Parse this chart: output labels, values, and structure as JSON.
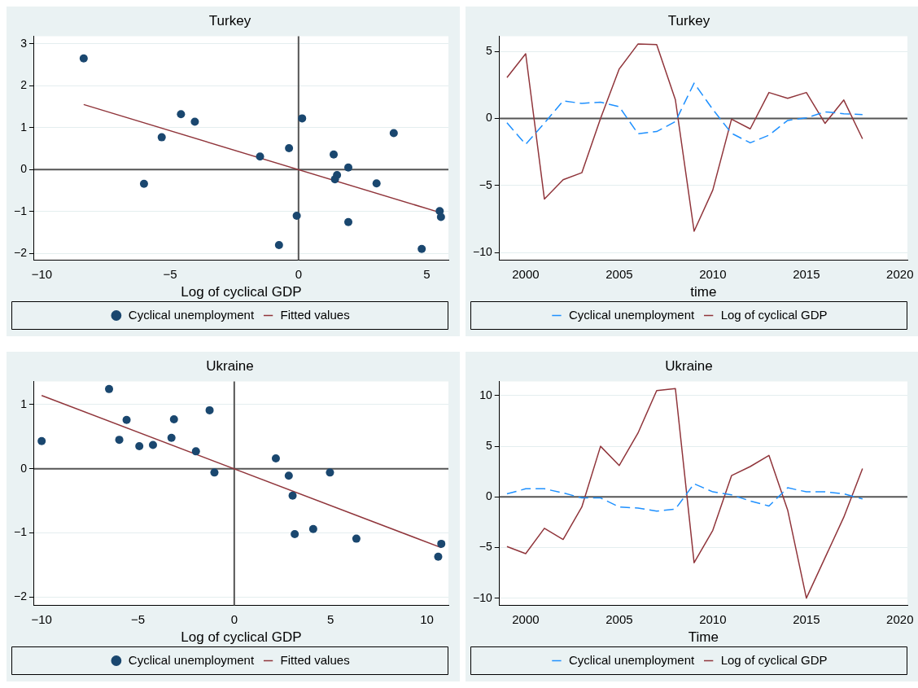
{
  "chart_data": [
    {
      "type": "scatter",
      "title": "Turkey",
      "xlabel": "Log of cyclical GDP",
      "xlim": [
        -10.3,
        5.84
      ],
      "xticks": [
        -10,
        -5,
        0,
        5
      ],
      "ylim": [
        -2.16,
        3.18
      ],
      "yticks": [
        -2,
        -1,
        0,
        1,
        2,
        3
      ],
      "grid": "y",
      "legend": "bottom",
      "ref_lines": [
        {
          "axis": "y",
          "value": 0,
          "color": "#555555"
        },
        {
          "axis": "x",
          "value": 0,
          "color": "#555555"
        }
      ],
      "series": [
        {
          "name": "Cyclical unemployment",
          "color": "#1a476f",
          "marker": "circle",
          "x": [
            -8.37,
            -6.02,
            -5.33,
            -4.58,
            -4.04,
            -1.5,
            -0.37,
            0.14,
            -0.07,
            -0.76,
            1.37,
            1.5,
            1.42,
            1.94,
            1.94,
            3.04,
            3.71,
            4.8,
            5.5,
            5.55
          ],
          "values": [
            2.65,
            -0.34,
            0.77,
            1.32,
            1.14,
            0.31,
            0.51,
            1.22,
            -1.1,
            -1.8,
            0.36,
            -0.13,
            -0.23,
            0.05,
            -1.25,
            -0.33,
            0.87,
            -1.89,
            -0.99,
            -1.13
          ]
        },
        {
          "name": "Fitted values",
          "type": "line",
          "color": "#90353b",
          "marker": "none",
          "x": [
            -8.37,
            5.55
          ],
          "values": [
            1.55,
            -1.03
          ]
        }
      ]
    },
    {
      "type": "line",
      "title": "Turkey",
      "xlabel": "time",
      "xlim": [
        1998.6,
        2020.4
      ],
      "xticks": [
        2000,
        2005,
        2010,
        2015,
        2020
      ],
      "ylim": [
        -10.56,
        6.14
      ],
      "yticks": [
        -10,
        -5,
        0,
        5
      ],
      "grid": "y",
      "legend": "bottom",
      "marker": "none",
      "ref_lines": [
        {
          "axis": "y",
          "value": 0,
          "color": "#555555"
        }
      ],
      "x": [
        1999,
        2000,
        2001,
        2002,
        2003,
        2004,
        2005,
        2006,
        2007,
        2008,
        2009,
        2010,
        2011,
        2012,
        2013,
        2014,
        2015,
        2016,
        2017,
        2018
      ],
      "series": [
        {
          "name": "Cyclical unemployment",
          "color": "#1e90ff",
          "line_style": "dashed",
          "values": [
            -0.32,
            -1.92,
            -0.34,
            1.31,
            1.13,
            1.22,
            0.88,
            -1.13,
            -0.97,
            -0.23,
            2.64,
            0.68,
            -1.1,
            -1.81,
            -1.24,
            -0.14,
            0.05,
            0.5,
            0.36,
            0.29
          ]
        },
        {
          "name": "Log of cyclical GDP",
          "color": "#90353b",
          "line_style": "solid",
          "values": [
            3.05,
            4.83,
            -6.0,
            -4.56,
            -4.04,
            0.0,
            3.7,
            5.55,
            5.51,
            1.4,
            -8.4,
            -5.33,
            -0.05,
            -0.77,
            1.94,
            1.51,
            1.94,
            -0.36,
            1.38,
            -1.51
          ]
        }
      ]
    },
    {
      "type": "scatter",
      "title": "Ukraine",
      "xlabel": "Log of cyclical GDP",
      "xlim": [
        -10.39,
        11.12
      ],
      "xticks": [
        -10,
        -5,
        0,
        5,
        10
      ],
      "ylim": [
        -2.13,
        1.36
      ],
      "yticks": [
        -2,
        -1,
        0,
        1
      ],
      "grid": "y",
      "legend": "bottom",
      "ref_lines": [
        {
          "axis": "y",
          "value": 0,
          "color": "#555555"
        },
        {
          "axis": "x",
          "value": 0,
          "color": "#555555"
        }
      ],
      "series": [
        {
          "name": "Cyclical unemployment",
          "color": "#1a476f",
          "marker": "circle",
          "x": [
            -10.0,
            -6.5,
            -5.97,
            -5.59,
            -4.93,
            -4.22,
            -3.26,
            -3.13,
            -1.99,
            -1.28,
            -1.03,
            2.16,
            2.83,
            3.03,
            3.14,
            4.1,
            4.97,
            6.34,
            10.59,
            10.75
          ],
          "values": [
            0.43,
            1.24,
            0.45,
            0.76,
            0.35,
            0.37,
            0.48,
            0.77,
            0.27,
            0.91,
            -0.06,
            0.16,
            -0.11,
            -0.42,
            -1.02,
            -0.94,
            -0.06,
            -1.09,
            -1.37,
            -1.17
          ]
        },
        {
          "name": "Fitted values",
          "type": "line",
          "color": "#90353b",
          "marker": "none",
          "x": [
            -10.0,
            10.75
          ],
          "values": [
            1.14,
            -1.23
          ]
        }
      ]
    },
    {
      "type": "line",
      "title": "Ukraine",
      "xlabel": "Time",
      "xlim": [
        1998.6,
        2020.4
      ],
      "xticks": [
        2000,
        2005,
        2010,
        2015,
        2020
      ],
      "ylim": [
        -10.72,
        11.41
      ],
      "yticks": [
        -10,
        -5,
        0,
        5,
        10
      ],
      "grid": "y",
      "legend": "bottom",
      "marker": "none",
      "ref_lines": [
        {
          "axis": "y",
          "value": 0,
          "color": "#555555"
        }
      ],
      "x": [
        1999,
        2000,
        2001,
        2002,
        2003,
        2004,
        2005,
        2006,
        2007,
        2008,
        2009,
        2010,
        2011,
        2012,
        2013,
        2014,
        2015,
        2016,
        2017,
        2018
      ],
      "series": [
        {
          "name": "Cyclical unemployment",
          "color": "#1e90ff",
          "line_style": "dashed",
          "values": [
            0.3,
            0.8,
            0.8,
            0.4,
            -0.1,
            -0.1,
            -1.0,
            -1.1,
            -1.4,
            -1.2,
            1.3,
            0.5,
            0.2,
            -0.4,
            -0.9,
            0.9,
            0.5,
            0.5,
            0.3,
            -0.2
          ]
        },
        {
          "name": "Log of cyclical GDP",
          "color": "#90353b",
          "line_style": "solid",
          "values": [
            -4.9,
            -5.6,
            -3.1,
            -4.2,
            -1.0,
            5.0,
            3.1,
            6.3,
            10.5,
            10.7,
            -6.5,
            -3.3,
            2.1,
            3.0,
            4.1,
            -1.3,
            -10.0,
            -6.0,
            -2.0,
            2.8
          ]
        }
      ]
    }
  ]
}
